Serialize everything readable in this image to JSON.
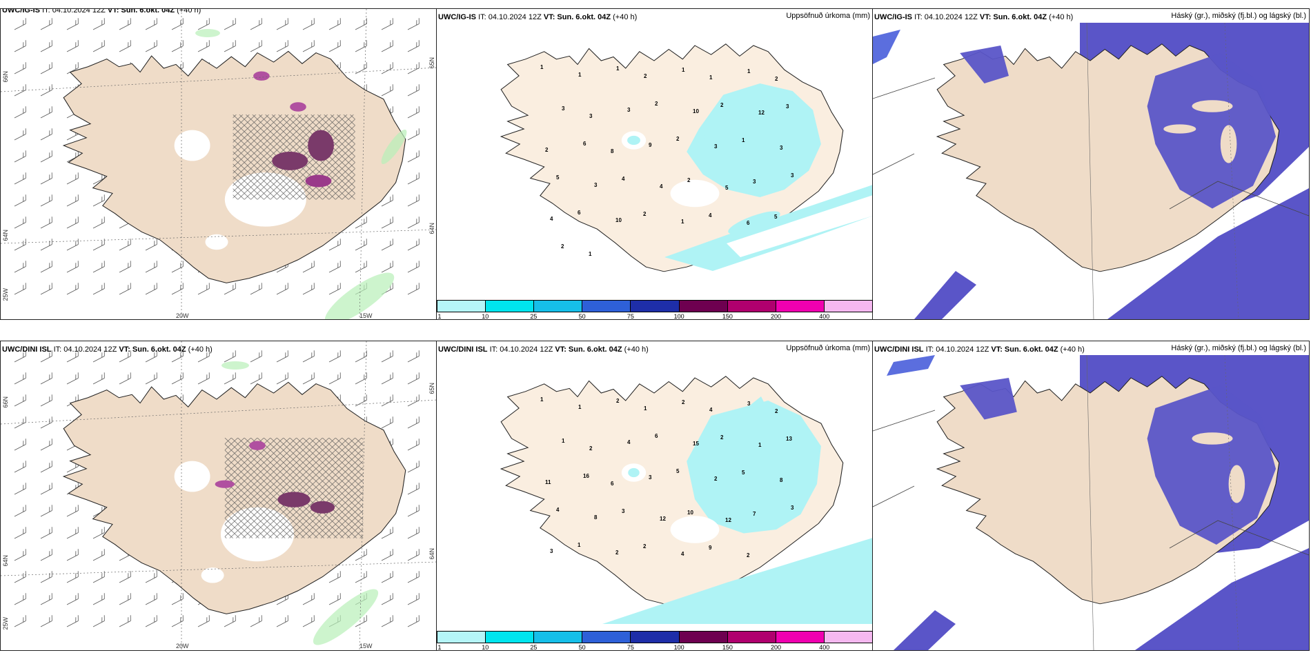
{
  "rows": [
    {
      "model": "UWC/IG-IS",
      "it": "IT: 04.10.2024 12Z",
      "vt": "VT: Sun. 6.okt. 04Z",
      "lead": "(+40 h)",
      "wind_hdr_cut": "(+40 h)",
      "precip_nums": [
        "1",
        "1",
        "1",
        "2",
        "1",
        "1",
        "1",
        "2",
        "3",
        "3",
        "3",
        "2",
        "10",
        "2",
        "12",
        "3",
        "2",
        "6",
        "8",
        "9",
        "2",
        "3",
        "1",
        "3",
        "5",
        "3",
        "4",
        "4",
        "2",
        "5",
        "3",
        "3",
        "4",
        "6",
        "10",
        "2",
        "1",
        "4",
        "6",
        "5",
        "2",
        "1"
      ]
    },
    {
      "model": "UWC/DINI ISL",
      "it": "IT: 04.10.2024 12Z",
      "vt": "VT: Sun. 6.okt. 04Z",
      "lead": "(+40 h)",
      "wind_hdr_cut": "",
      "precip_nums": [
        "1",
        "1",
        "2",
        "1",
        "2",
        "4",
        "3",
        "2",
        "1",
        "2",
        "4",
        "6",
        "15",
        "2",
        "1",
        "13",
        "11",
        "16",
        "6",
        "3",
        "5",
        "2",
        "5",
        "8",
        "4",
        "8",
        "3",
        "12",
        "10",
        "12",
        "7",
        "3",
        "3",
        "1",
        "2",
        "2",
        "4",
        "9",
        "2"
      ]
    }
  ],
  "precip_title": "Uppsöfnuð úrkoma (mm)",
  "cloud_title": "Háský (gr.), miðský (fj.bl.) og lágský (bl.)",
  "precip_colorbar": {
    "ticks": [
      "1",
      "10",
      "25",
      "50",
      "75",
      "100",
      "150",
      "200",
      "400"
    ],
    "colors": [
      "#b5f5f8",
      "#00e5ee",
      "#16bfe9",
      "#2e60d8",
      "#1e2ea8",
      "#6e0050",
      "#b0006e",
      "#f000b0",
      "#f5b8f0"
    ]
  },
  "wind_axes": {
    "lat_top": "66N",
    "lat_bottom": "64N",
    "lat_right_top": "65N",
    "lat_right_mid": "64N",
    "lon_left_bottom": "25W",
    "lon_mid": "20W",
    "lon_right": "15W"
  }
}
